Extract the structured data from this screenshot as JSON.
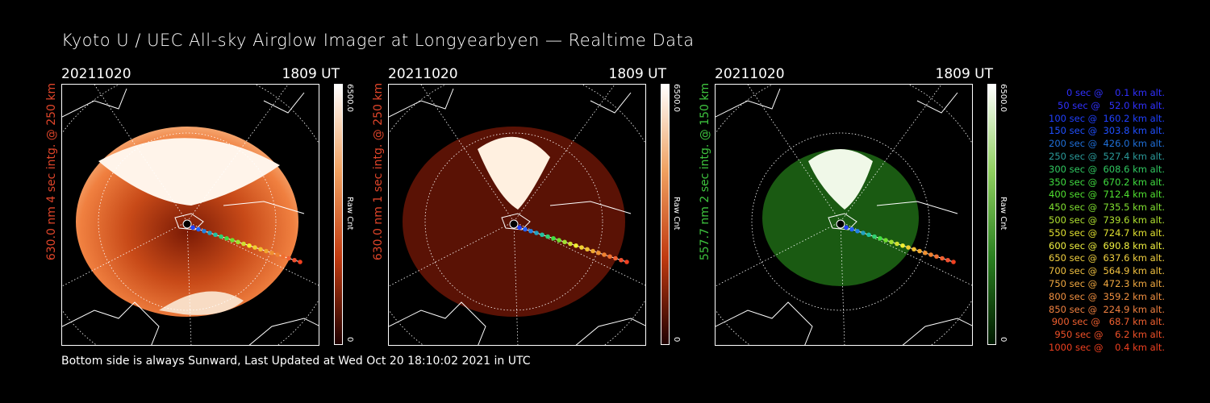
{
  "title": "Kyoto U / UEC All-sky Airglow Imager at Longyearbyen — Realtime Data",
  "footer": "Bottom side is always Sunward, Last Updated at Wed Oct 20 18:10:02 2021 in UTC",
  "panels": [
    {
      "date": "20211020",
      "time": "1809 UT",
      "ylabel": "630.0 nm 4 sec intg. @ 250 km",
      "ylabel_color": "#e0452a",
      "cbar_max": "6500.0",
      "cbar_min": "0",
      "cbar_unit": "Raw Cnt",
      "palette": "orange"
    },
    {
      "date": "20211020",
      "time": "1809 UT",
      "ylabel": "630.0 nm 1 sec intg. @ 250 km",
      "ylabel_color": "#e0452a",
      "cbar_max": "6500.0",
      "cbar_min": "0",
      "cbar_unit": "Raw Cnt",
      "palette": "darkred"
    },
    {
      "date": "20211020",
      "time": "1809 UT",
      "ylabel": "557.7 nm 2 sec intg. @ 150 km",
      "ylabel_color": "#3ec43e",
      "cbar_max": "6500.0",
      "cbar_min": "0",
      "cbar_unit": "Raw Cnt",
      "palette": "green"
    }
  ],
  "legend": [
    {
      "text": "0 sec @    0.1 km alt.",
      "color": "#3030ff"
    },
    {
      "text": "50 sec @   52.0 km alt.",
      "color": "#3030ff"
    },
    {
      "text": "100 sec @  160.2 km alt.",
      "color": "#2040ff"
    },
    {
      "text": "150 sec @  303.8 km alt.",
      "color": "#2050ff"
    },
    {
      "text": "200 sec @  426.0 km alt.",
      "color": "#1f6fd8"
    },
    {
      "text": "250 sec @  527.4 km alt.",
      "color": "#2a9a9a"
    },
    {
      "text": "300 sec @  608.6 km alt.",
      "color": "#30c860"
    },
    {
      "text": "350 sec @  670.2 km alt.",
      "color": "#40dc40"
    },
    {
      "text": "400 sec @  712.4 km alt.",
      "color": "#50e030"
    },
    {
      "text": "450 sec @  735.5 km alt.",
      "color": "#80e030"
    },
    {
      "text": "500 sec @  739.6 km alt.",
      "color": "#b0e030"
    },
    {
      "text": "550 sec @  724.7 km alt.",
      "color": "#e0e030"
    },
    {
      "text": "600 sec @  690.8 km alt.",
      "color": "#f0f040"
    },
    {
      "text": "650 sec @  637.6 km alt.",
      "color": "#f0d040"
    },
    {
      "text": "700 sec @  564.9 km alt.",
      "color": "#f0c040"
    },
    {
      "text": "750 sec @  472.3 km alt.",
      "color": "#f0a840"
    },
    {
      "text": "800 sec @  359.2 km alt.",
      "color": "#f09040"
    },
    {
      "text": "850 sec @  224.9 km alt.",
      "color": "#f08040"
    },
    {
      "text": "900 sec @   68.7 km alt.",
      "color": "#f06030"
    },
    {
      "text": "950 sec @    6.2 km alt.",
      "color": "#f05028"
    },
    {
      "text": "1000 sec @    0.4 km alt.",
      "color": "#f04020"
    }
  ],
  "track_colors": [
    "#2020ff",
    "#2040ff",
    "#2060ff",
    "#2080e0",
    "#20a0c0",
    "#20c0a0",
    "#30d070",
    "#40e040",
    "#70e030",
    "#a0e030",
    "#d0e030",
    "#f0f030",
    "#f0d030",
    "#f0c030",
    "#f0a830",
    "#f09030",
    "#f08030",
    "#f07030",
    "#f06030",
    "#f05030",
    "#f04020"
  ]
}
